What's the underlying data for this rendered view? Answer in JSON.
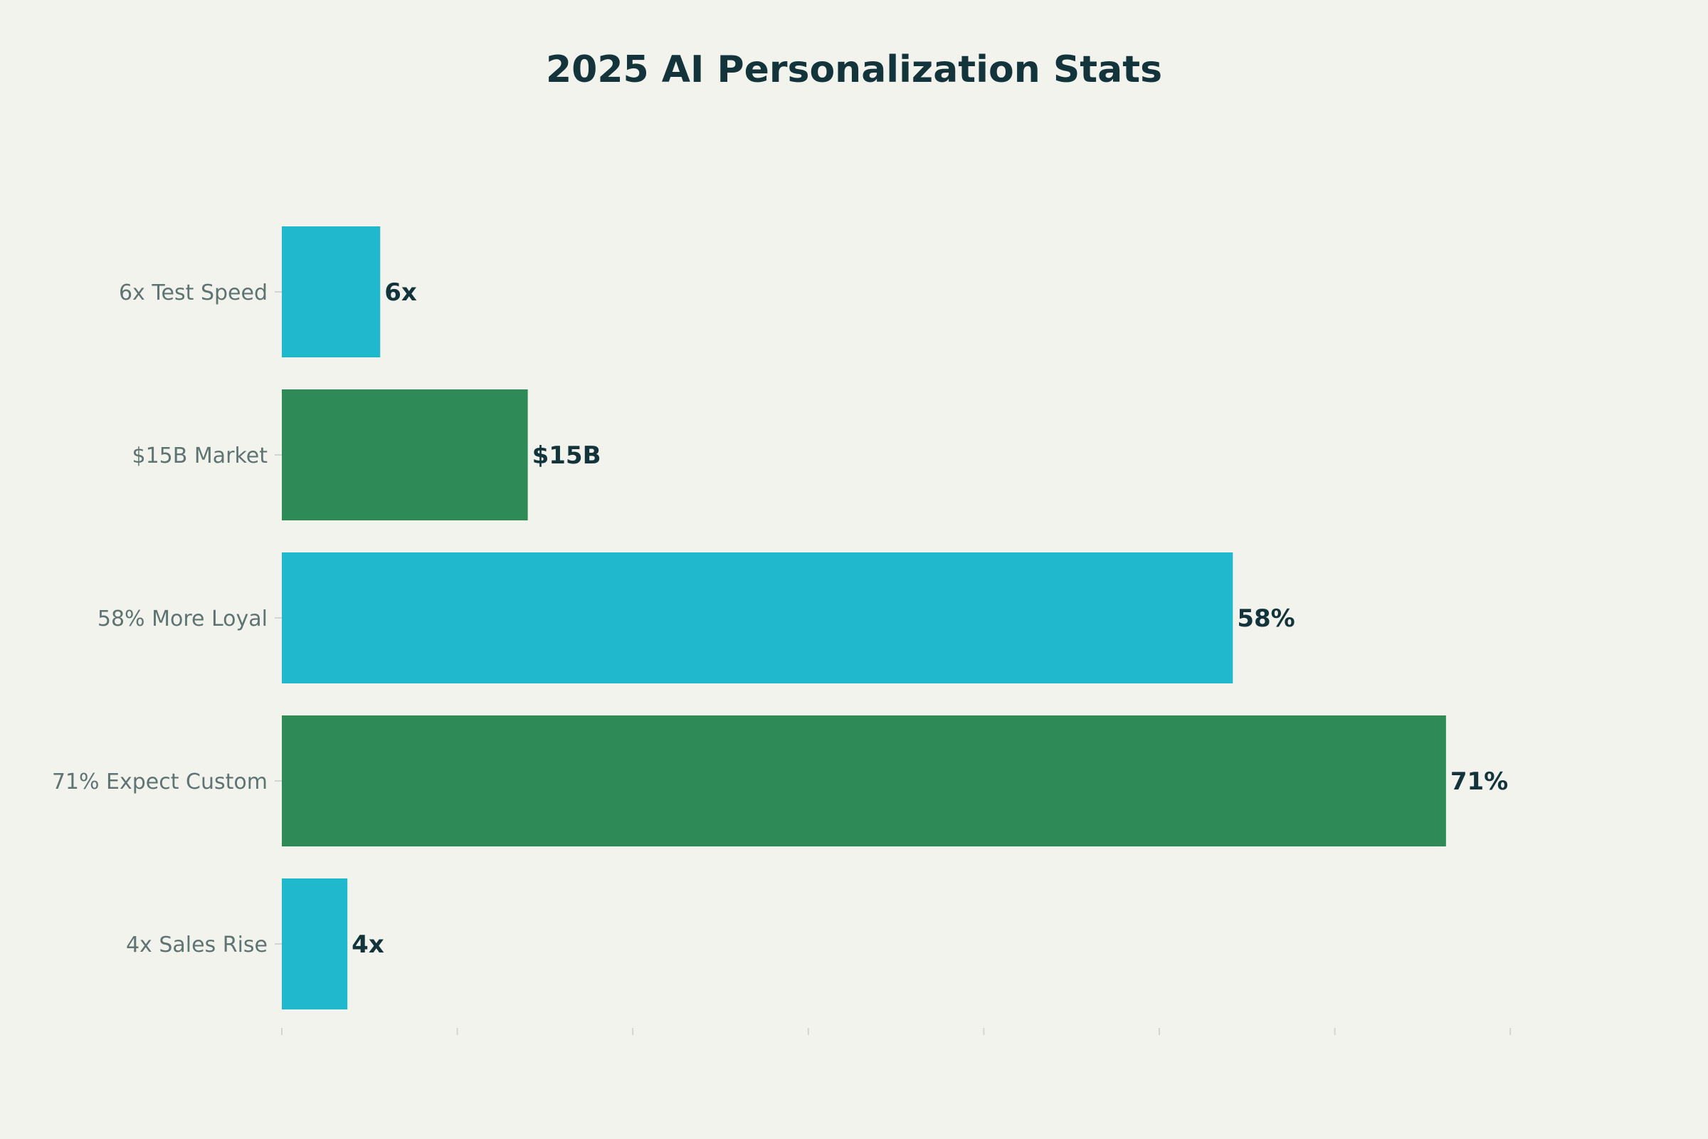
{
  "chart_data": {
    "type": "bar",
    "orientation": "horizontal",
    "title": "2025 AI Personalization Stats",
    "xlabel": "",
    "ylabel": "",
    "xlim": [
      0,
      75
    ],
    "grid": false,
    "categories": [
      "6x Test Speed",
      "$15B Market",
      "58% More Loyal",
      "71% Expect Custom",
      "4x Sales Rise"
    ],
    "values": [
      6,
      15,
      58,
      71,
      4
    ],
    "value_labels": [
      "6x",
      "$15B",
      "58%",
      "71%",
      "4x"
    ],
    "colors": [
      "#1fb8cd",
      "#2e8b57",
      "#1fb8cd",
      "#2e8b57",
      "#1fb8cd"
    ],
    "x_tick_count": 8
  }
}
